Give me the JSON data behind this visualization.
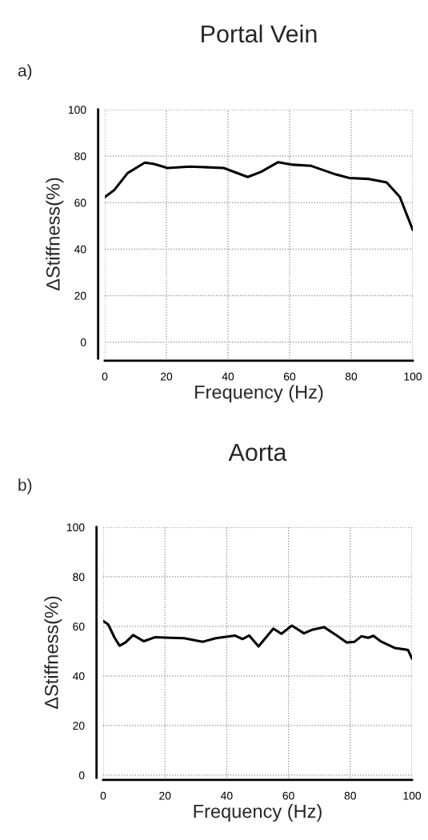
{
  "chart_data": [
    {
      "type": "line",
      "title": "Portal Vein",
      "annotations": [
        "a)"
      ],
      "xlabel": "Frequency (Hz)",
      "ylabel": "ΔStiffness(%)",
      "xlim": [
        0,
        100
      ],
      "ylim": [
        -7,
        100
      ],
      "xticks": [
        0,
        20,
        40,
        60,
        80,
        100
      ],
      "yticks": [
        0,
        20,
        40,
        60,
        80,
        100
      ],
      "grid": true,
      "line_style": "solid",
      "marker": "none",
      "series": [
        {
          "color": "#000000",
          "x": [
            0,
            3,
            7.4,
            13,
            16,
            20.4,
            27.7,
            38.6,
            46.4,
            50.7,
            56.3,
            61,
            67,
            75,
            79.4,
            85.4,
            91.5,
            95.8,
            100
          ],
          "values": [
            62.4,
            65.3,
            72.7,
            77.2,
            76.6,
            74.9,
            75.5,
            74.9,
            71,
            73.2,
            77.4,
            76.3,
            75.8,
            72.1,
            70.6,
            70.2,
            68.7,
            62.4,
            48.2
          ]
        }
      ]
    },
    {
      "type": "line",
      "title": "Aorta",
      "annotations": [
        "b)"
      ],
      "xlabel": "Frequency (Hz)",
      "ylabel": "ΔStiffness(%)",
      "xlim": [
        0,
        100
      ],
      "ylim": [
        -1,
        100
      ],
      "xticks": [
        0,
        20,
        40,
        60,
        80,
        100
      ],
      "yticks": [
        0,
        20,
        40,
        60,
        80,
        100
      ],
      "grid": true,
      "line_style": "solid",
      "marker": "none",
      "series": [
        {
          "color": "#000000",
          "x": [
            0,
            1.6,
            3.7,
            5.3,
            7.2,
            9.7,
            13.2,
            16.7,
            21.8,
            26.2,
            32.2,
            36.5,
            42.6,
            45.1,
            47.3,
            50.3,
            55.1,
            57.7,
            61.1,
            65,
            67.6,
            71.5,
            75.4,
            78.8,
            81.4,
            83.6,
            85.8,
            87.5,
            90.1,
            94.4,
            98.7,
            100
          ],
          "values": [
            62.2,
            60.8,
            55.4,
            52.2,
            53.5,
            56.5,
            54,
            55.6,
            55.4,
            55.2,
            53.8,
            55.2,
            56.3,
            54.9,
            56.3,
            51.9,
            59.1,
            57,
            60.3,
            57.2,
            58.6,
            59.7,
            56.5,
            53.5,
            53.8,
            56,
            55.4,
            56.2,
            53.8,
            51.3,
            50.5,
            47
          ]
        }
      ]
    }
  ]
}
